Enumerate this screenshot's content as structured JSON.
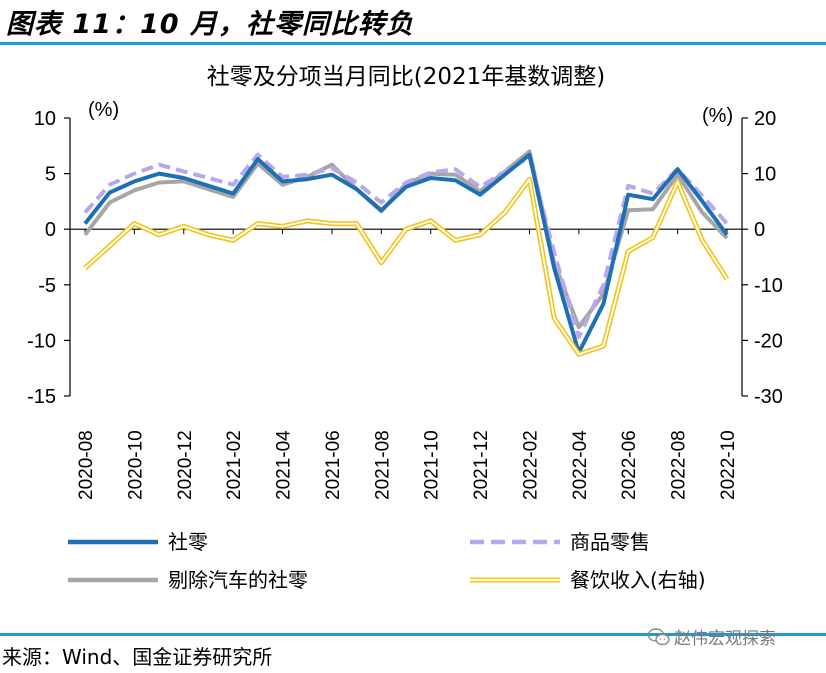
{
  "figure_title": "图表 11：10 月，社零同比转负",
  "source": "来源：Wind、国金证券研究所",
  "watermark": "赵伟宏观探索",
  "colors": {
    "rule": "#1a9ad6",
    "retail": "#1f6fb5",
    "goods": "#b8a7ef",
    "ex_auto": "#a6a6a6",
    "catering": "#f2c418"
  },
  "chart_data": {
    "type": "line",
    "title": "社零及分项当月同比(2021年基数调整)",
    "left_unit": "(%)",
    "right_unit": "(%)",
    "ylim_left": [
      -15,
      10
    ],
    "yticks_left": [
      10,
      5,
      0,
      -5,
      -10,
      -15
    ],
    "ylim_right": [
      -30,
      20
    ],
    "yticks_right": [
      20,
      10,
      0,
      -10,
      -20,
      -30
    ],
    "x": [
      "2020-08",
      "2020-09",
      "2020-10",
      "2020-11",
      "2020-12",
      "2021-01",
      "2021-02",
      "2021-03",
      "2021-04",
      "2021-05",
      "2021-06",
      "2021-07",
      "2021-08",
      "2021-09",
      "2021-10",
      "2021-11",
      "2021-12",
      "2021-01b",
      "2022-02",
      "2022-03",
      "2022-04",
      "2022-05",
      "2022-06",
      "2022-07",
      "2022-08",
      "2022-09",
      "2022-10"
    ],
    "x_tick_labels": [
      "2020-08",
      "2020-10",
      "2020-12",
      "2021-02",
      "2021-04",
      "2021-06",
      "2021-08",
      "2021-10",
      "2021-12",
      "2022-02",
      "2022-04",
      "2022-06",
      "2022-08",
      "2022-10"
    ],
    "legend_position": "bottom",
    "series": [
      {
        "name": "社零",
        "axis": "left",
        "style": "solid-thick",
        "color_key": "retail",
        "values": [
          0.5,
          3.3,
          4.3,
          5.0,
          4.6,
          3.9,
          3.2,
          6.3,
          4.3,
          4.5,
          4.9,
          3.6,
          1.7,
          3.8,
          4.6,
          4.4,
          3.1,
          4.9,
          6.7,
          -3.5,
          -11.1,
          -6.7,
          3.1,
          2.7,
          5.4,
          2.5,
          -0.5
        ]
      },
      {
        "name": "商品零售",
        "axis": "left",
        "style": "dashed",
        "color_key": "goods",
        "values": [
          1.5,
          4.0,
          5.0,
          5.8,
          5.2,
          4.6,
          4.0,
          6.7,
          4.7,
          4.9,
          5.5,
          4.2,
          2.4,
          4.2,
          5.1,
          5.4,
          3.8,
          5.2,
          6.5,
          -2.1,
          -9.7,
          -5.0,
          3.9,
          3.2,
          5.4,
          3.0,
          0.5
        ]
      },
      {
        "name": "剔除汽车的社零",
        "axis": "left",
        "style": "solid-thick",
        "color_key": "ex_auto",
        "values": [
          -0.5,
          2.4,
          3.5,
          4.2,
          4.3,
          3.6,
          2.9,
          5.9,
          4.0,
          4.7,
          5.8,
          3.6,
          1.6,
          4.1,
          5.0,
          4.9,
          3.4,
          5.2,
          7.0,
          -3.0,
          -8.8,
          -5.8,
          1.7,
          1.8,
          4.9,
          1.5,
          -0.8
        ]
      },
      {
        "name": "餐饮收入(右轴)",
        "axis": "right",
        "style": "double-gold",
        "color_key": "catering",
        "values": [
          -7,
          -3,
          1,
          -1,
          0.5,
          -1,
          -2,
          1,
          0.5,
          1.5,
          1,
          1,
          -6,
          0,
          1.5,
          -2,
          -1,
          3,
          9,
          -16,
          -22.5,
          -21,
          -4,
          -1.5,
          8.5,
          -2,
          -9
        ]
      }
    ]
  }
}
